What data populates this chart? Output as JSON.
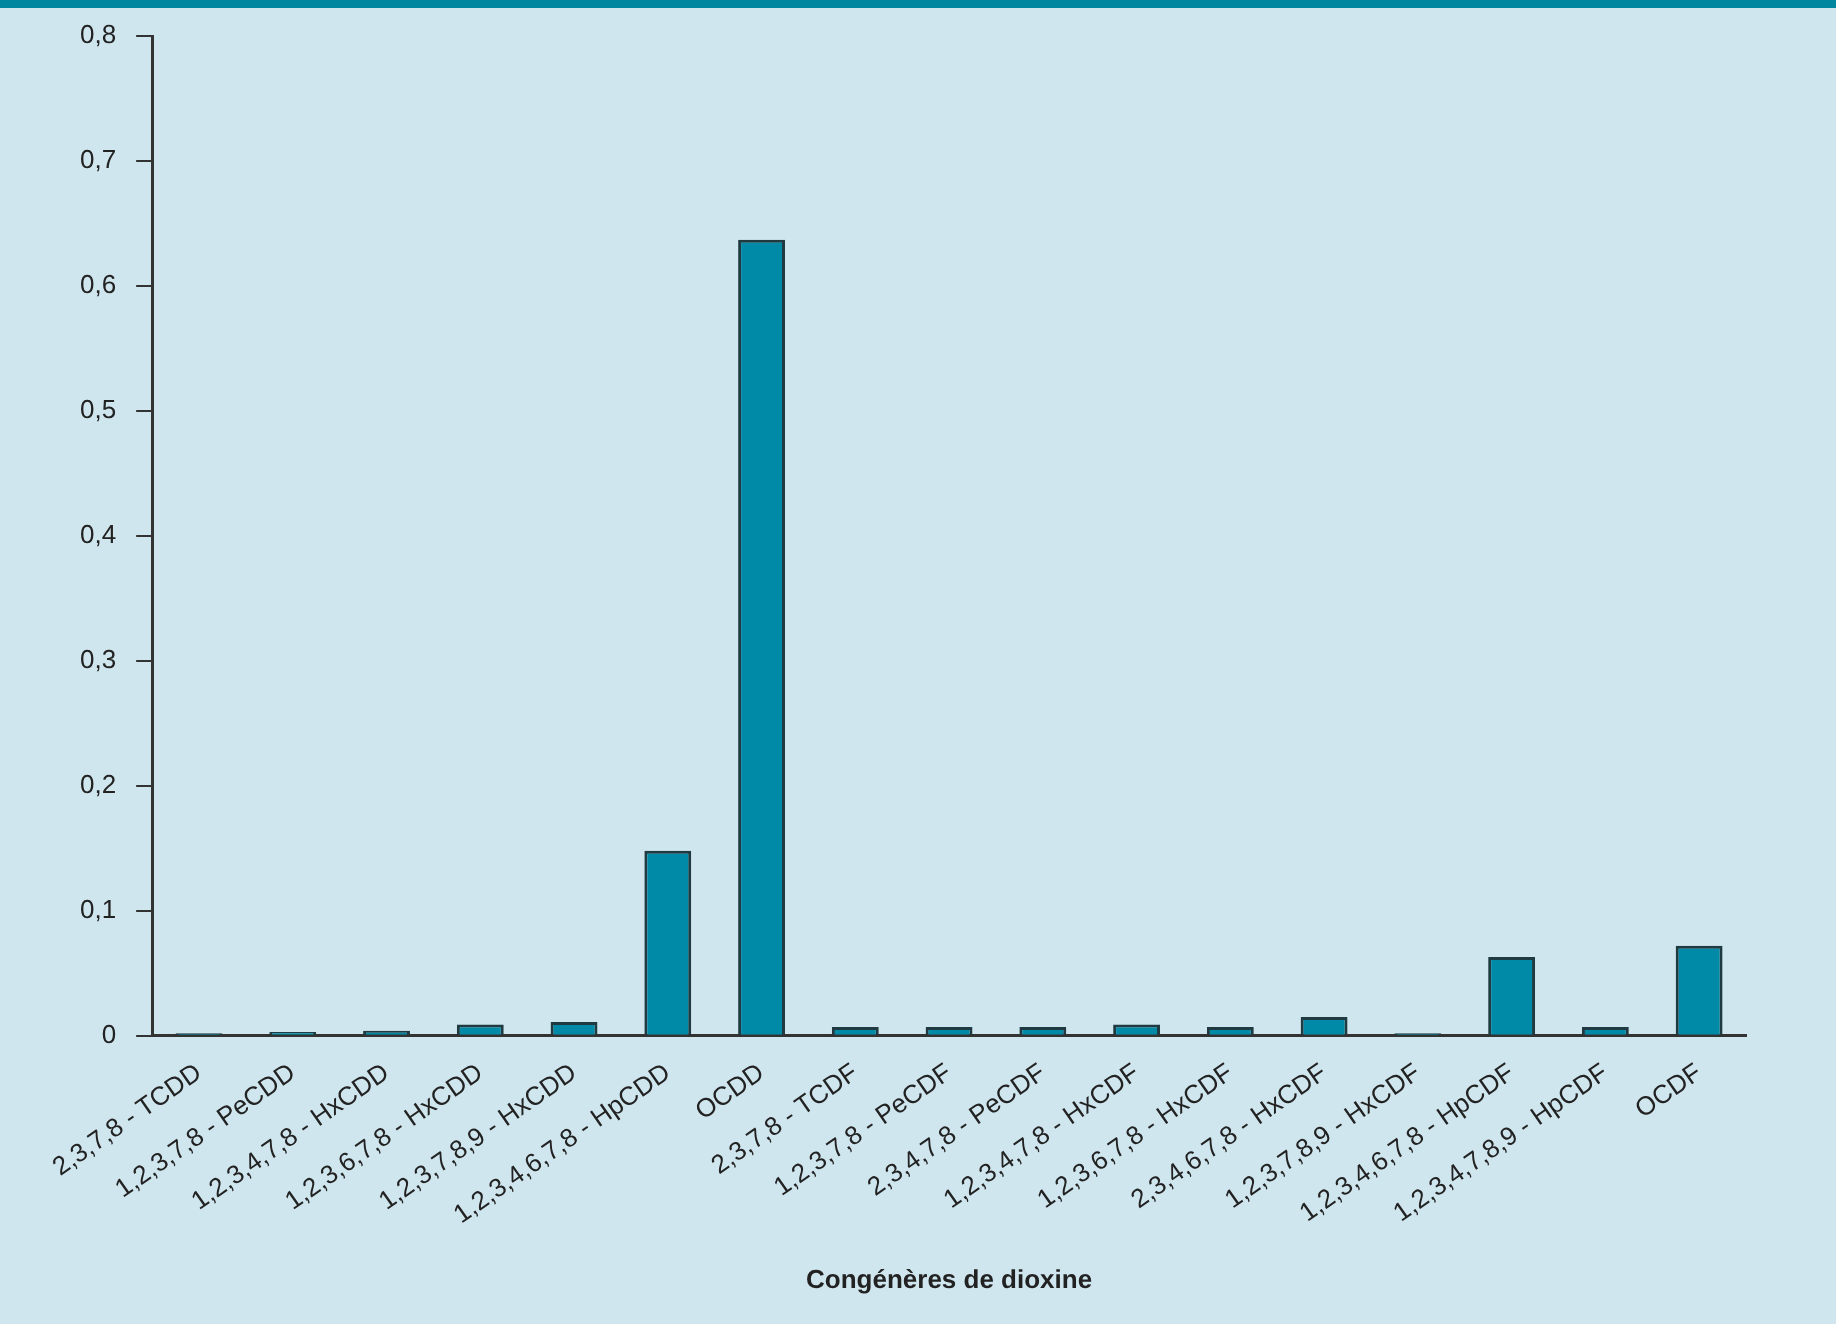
{
  "chart_data": {
    "type": "bar",
    "xlabel": "Congénères de dioxine",
    "categories": [
      "2,3,7,8 - TCDD",
      "1,2,3,7,8 - PeCDD",
      "1,2,3,4,7,8 - HxCDD",
      "1,2,3,6,7,8 - HxCDD",
      "1,2,3,7,8,9 - HxCDD",
      "1,2,3,4,6,7,8 - HpCDD",
      "OCDD",
      "2,3,7,8 - TCDF",
      "1,2,3,7,8 - PeCDF",
      "2,3,4,7,8 - PeCDF",
      "1,2,3,4,7,8 - HxCDF",
      "1,2,3,6,7,8 - HxCDF",
      "2,3,4,6,7,8 - HxCDF",
      "1,2,3,7,8,9 - HxCDF",
      "1,2,3,4,6,7,8 - HpCDF",
      "1,2,3,4,7,8,9 - HpCDF",
      "OCDF"
    ],
    "values": [
      0.002,
      0.003,
      0.004,
      0.009,
      0.011,
      0.148,
      0.637,
      0.007,
      0.007,
      0.007,
      0.009,
      0.007,
      0.015,
      0.002,
      0.063,
      0.007,
      0.072
    ],
    "color": "#008aa8",
    "ylim": [
      0,
      0.8
    ],
    "yticks": [
      {
        "value": 0,
        "label": "0"
      },
      {
        "value": 0.1,
        "label": "0,1"
      },
      {
        "value": 0.2,
        "label": "0,2"
      },
      {
        "value": 0.3,
        "label": "0,3"
      },
      {
        "value": 0.4,
        "label": "0,4"
      },
      {
        "value": 0.5,
        "label": "0,5"
      },
      {
        "value": 0.6,
        "label": "0,6"
      },
      {
        "value": 0.7,
        "label": "0,7"
      },
      {
        "value": 0.8,
        "label": "0,8"
      }
    ],
    "grid": false,
    "legend": false
  }
}
